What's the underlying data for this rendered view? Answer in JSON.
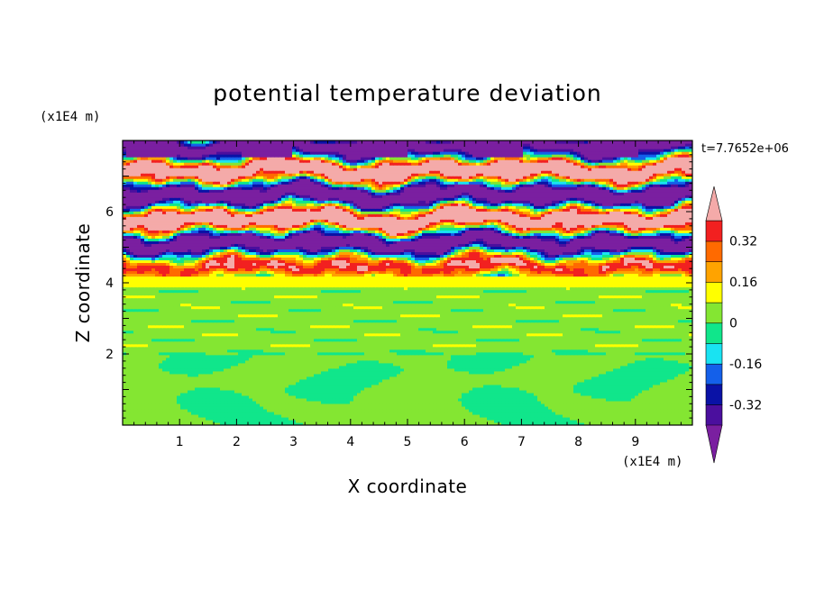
{
  "chart_data": {
    "type": "heatmap",
    "title": "potential temperature deviation",
    "xlabel": "X coordinate",
    "ylabel": "Z coordinate",
    "x_unit": "(x1E4 m)",
    "y_unit": "(x1E4 m)",
    "time_label": "t=7.7652e+06",
    "xlim": [
      0,
      10
    ],
    "ylim": [
      0,
      8
    ],
    "x_ticks": [
      1,
      2,
      3,
      4,
      5,
      6,
      7,
      8,
      9
    ],
    "y_ticks": [
      2,
      4,
      6
    ],
    "colorbar": {
      "levels": [
        -0.4,
        -0.32,
        -0.24,
        -0.16,
        -0.08,
        0,
        0.08,
        0.16,
        0.24,
        0.32,
        0.4
      ],
      "labels": [
        "0.32",
        "0.16",
        "0",
        "-0.16",
        "-0.32"
      ],
      "label_values": [
        0.32,
        0.16,
        0,
        -0.16,
        -0.32
      ],
      "under_color": "#7a1fa0",
      "over_color": "#f4aaa9",
      "colors": [
        "#4b0f9e",
        "#0a12a6",
        "#1460ea",
        "#19e3f2",
        "#10e68b",
        "#84e632",
        "#ffff00",
        "#ffa300",
        "#ff6a00",
        "#f22020"
      ]
    },
    "field_description_bands": [
      {
        "z_range": [
          0,
          2
        ],
        "dominant": "0 to 0.08 and -0.08 to 0"
      },
      {
        "z_range": [
          2,
          3.9
        ],
        "dominant": "0 to 0.08"
      },
      {
        "z_range": [
          3.9,
          4.2
        ],
        "dominant": "0.08 to 0.16"
      },
      {
        "z_range": [
          4.2,
          8
        ],
        "dominant": "alternating above 0.4 and below -0.4"
      }
    ]
  }
}
